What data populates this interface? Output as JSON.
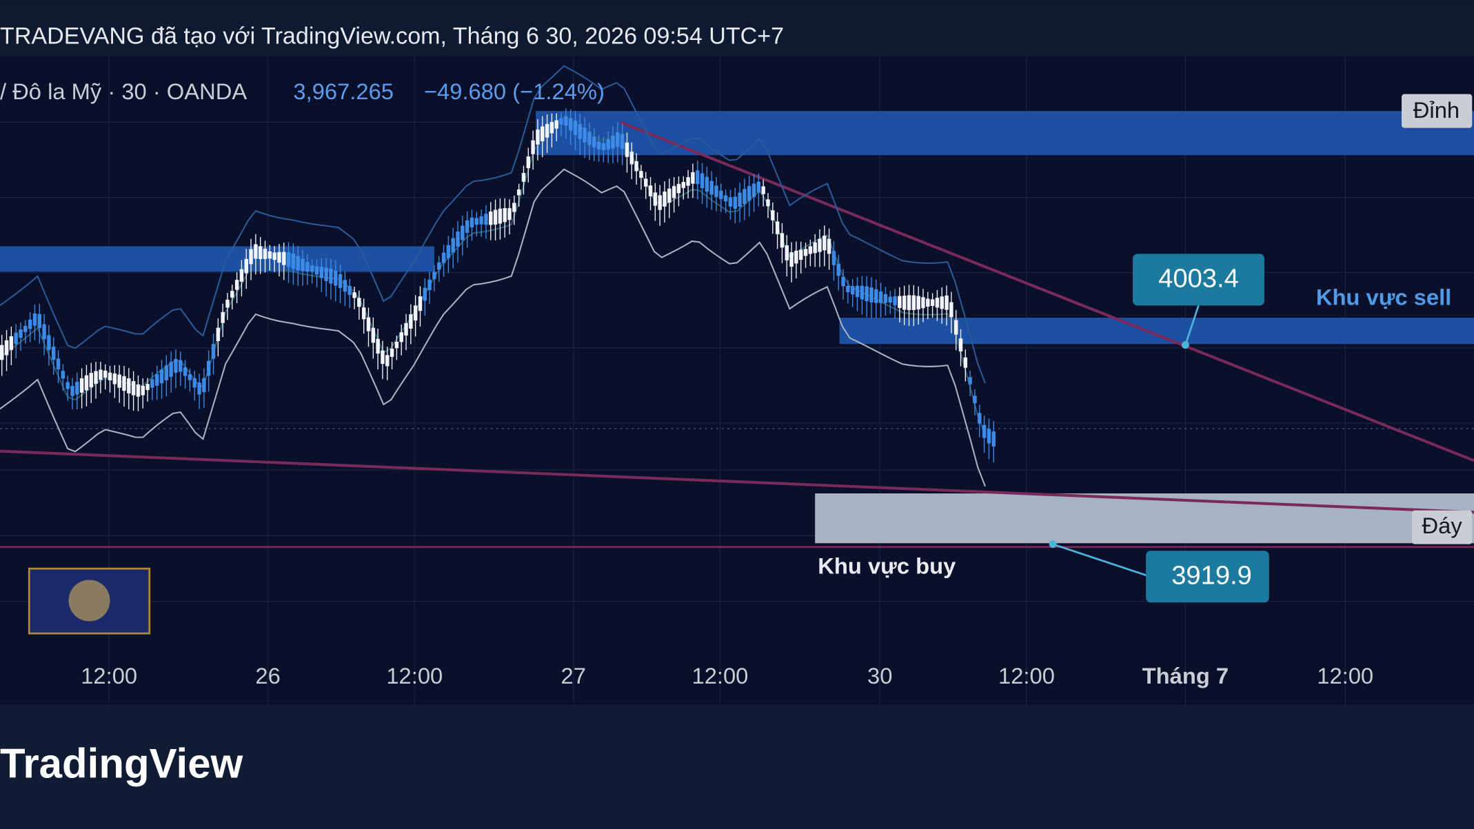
{
  "header": {
    "title": "TRADEVANG đã tạo với TradingView.com, Tháng 6 30, 2026 09:54 UTC+7"
  },
  "symbol": {
    "name": "/ Đô la Mỹ · 30 · OANDA",
    "price": "3,967.265",
    "change": "−49.680 (−1.24%)"
  },
  "annotations": {
    "top": "Đỉnh",
    "bottom": "Đáy",
    "sell_label": "Khu vực sell",
    "buy_label": "Khu vực buy",
    "sell_price": "4003.4",
    "buy_price": "3919.9"
  },
  "x_axis": [
    "12:00",
    "26",
    "12:00",
    "27",
    "12:00",
    "30",
    "12:00",
    "Tháng 7",
    "12:00"
  ],
  "footer": {
    "brand": "TradingView"
  }
}
